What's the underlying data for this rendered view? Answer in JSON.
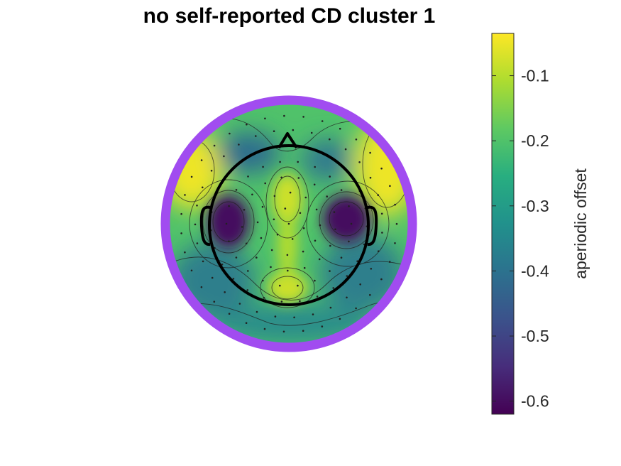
{
  "chart_data": {
    "type": "heatmap",
    "title": "no self-reported CD cluster 1",
    "colorbar": {
      "label": "aperiodic offset",
      "colormap": "viridis",
      "range": [
        -0.62,
        -0.035
      ],
      "ticks": [
        -0.1,
        -0.2,
        -0.3,
        -0.4,
        -0.5,
        -0.6
      ],
      "tick_labels": [
        "-0.1",
        "-0.2",
        "-0.3",
        "-0.4",
        "-0.5",
        "-0.6"
      ]
    },
    "topomap": {
      "ring_color": "#a14cf0",
      "background_value": -0.2,
      "regions": [
        {
          "name": "left temporal minimum",
          "value": -0.6
        },
        {
          "name": "right temporal minimum",
          "value": -0.6
        },
        {
          "name": "frontal-central maximum",
          "value": -0.08
        },
        {
          "name": "parietal maximum",
          "value": -0.08
        },
        {
          "name": "left frontal maximum",
          "value": -0.05
        },
        {
          "name": "right frontal maximum",
          "value": -0.05
        }
      ]
    }
  }
}
